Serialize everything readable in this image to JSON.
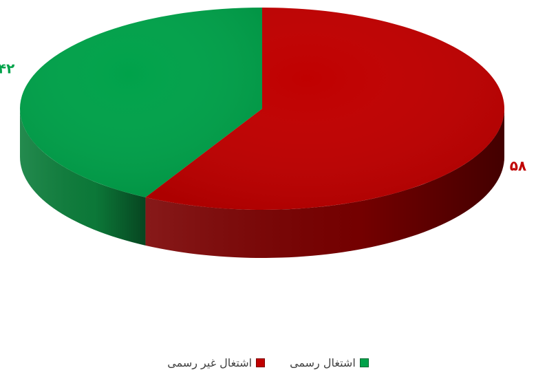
{
  "chart_data": {
    "type": "pie",
    "style": "3d",
    "categories": [
      "اشتغال رسمی",
      "اشتغال غیر رسمی"
    ],
    "values": [
      42,
      58
    ],
    "value_labels": [
      "۴۲",
      "۵۸"
    ],
    "colors": [
      "#00a24a",
      "#c00000"
    ],
    "side_colors": [
      "#0c7e3b",
      "#7a0000"
    ],
    "legend_position": "bottom"
  },
  "legend": {
    "items": [
      {
        "label": "اشتغال رسمی",
        "color": "#00a24a"
      },
      {
        "label": "اشتغال غیر رسمی",
        "color": "#c00000"
      }
    ]
  }
}
